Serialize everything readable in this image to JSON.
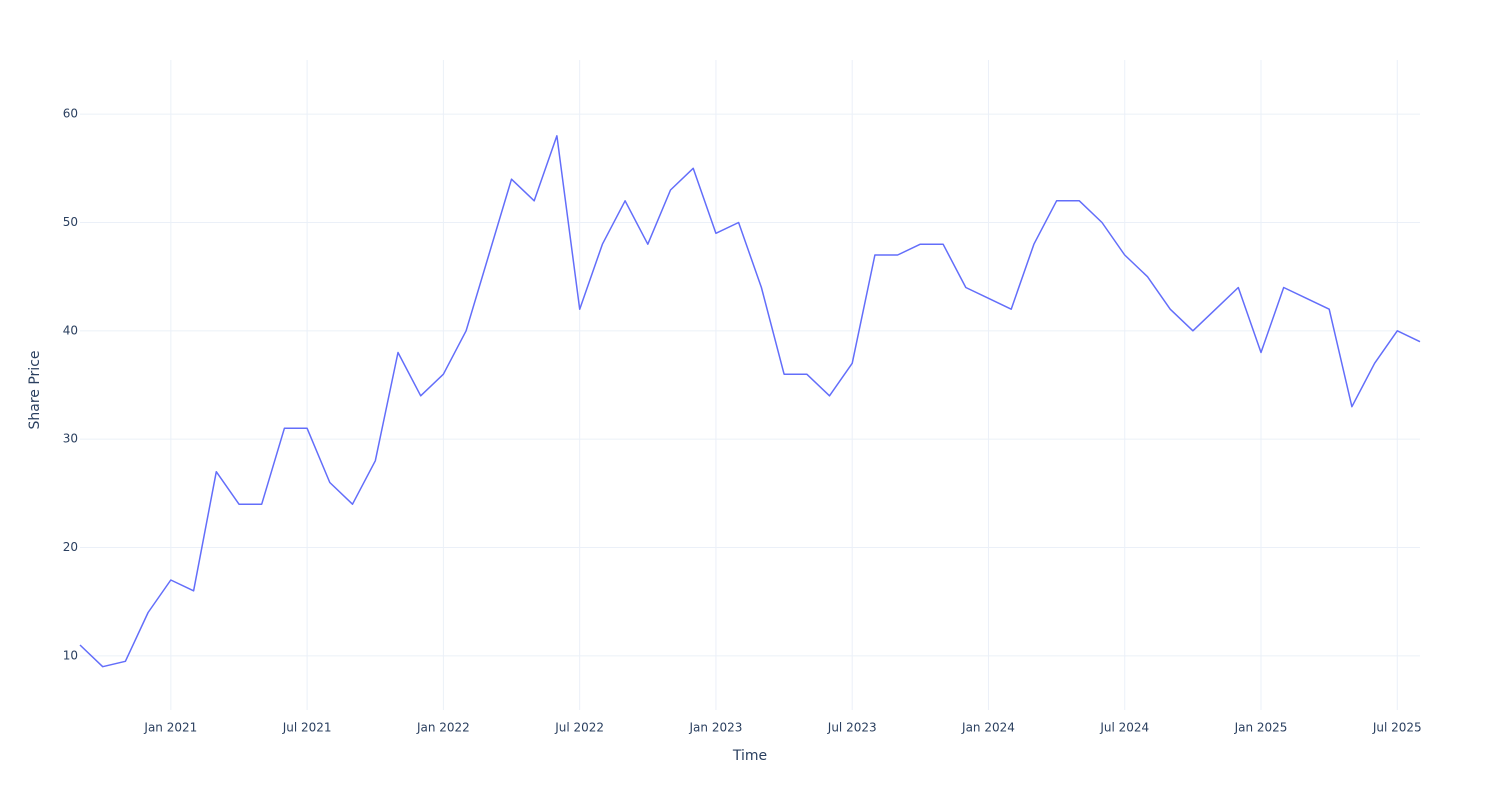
{
  "chart_data": {
    "type": "line",
    "x_label": "Time",
    "y_label": "Share Price",
    "x": [
      "2020-09",
      "2020-10",
      "2020-11",
      "2020-12",
      "2021-01",
      "2021-02",
      "2021-03",
      "2021-04",
      "2021-05",
      "2021-06",
      "2021-07",
      "2021-08",
      "2021-09",
      "2021-10",
      "2021-11",
      "2021-12",
      "2022-01",
      "2022-02",
      "2022-03",
      "2022-04",
      "2022-05",
      "2022-06",
      "2022-07",
      "2022-08",
      "2022-09",
      "2022-10",
      "2022-11",
      "2022-12",
      "2023-01",
      "2023-02",
      "2023-03",
      "2023-04",
      "2023-05",
      "2023-06",
      "2023-07",
      "2023-08",
      "2023-09",
      "2023-10",
      "2023-11",
      "2023-12",
      "2024-01",
      "2024-02",
      "2024-03",
      "2024-04",
      "2024-05",
      "2024-06",
      "2024-07",
      "2024-08",
      "2024-09",
      "2024-10",
      "2024-11",
      "2024-12",
      "2025-01",
      "2025-02",
      "2025-03",
      "2025-04",
      "2025-05",
      "2025-06",
      "2025-07",
      "2025-08"
    ],
    "series": [
      {
        "name": "Share Price",
        "color": "#636efa",
        "values": [
          11,
          9,
          9.5,
          14,
          17,
          16,
          27,
          24,
          24,
          31,
          31,
          26,
          24,
          28,
          38,
          34,
          36,
          40,
          47,
          54,
          52,
          58,
          42,
          48,
          52,
          48,
          53,
          55,
          49,
          50,
          44,
          36,
          36,
          34,
          37,
          47,
          47,
          48,
          48,
          44,
          43,
          42,
          48,
          52,
          52,
          50,
          47,
          45,
          42,
          40,
          42,
          44,
          38,
          44,
          43,
          42,
          33,
          37,
          40,
          39
        ]
      }
    ],
    "xlim": [
      "2020-09",
      "2025-08"
    ],
    "xticks": [
      {
        "value": "2021-01",
        "label": "Jan 2021"
      },
      {
        "value": "2021-07",
        "label": "Jul 2021"
      },
      {
        "value": "2022-01",
        "label": "Jan 2022"
      },
      {
        "value": "2022-07",
        "label": "Jul 2022"
      },
      {
        "value": "2023-01",
        "label": "Jan 2023"
      },
      {
        "value": "2023-07",
        "label": "Jul 2023"
      },
      {
        "value": "2024-01",
        "label": "Jan 2024"
      },
      {
        "value": "2024-07",
        "label": "Jul 2024"
      },
      {
        "value": "2025-01",
        "label": "Jan 2025"
      },
      {
        "value": "2025-07",
        "label": "Jul 2025"
      }
    ],
    "ylim": [
      5,
      65
    ],
    "yticks": [
      10,
      20,
      30,
      40,
      50,
      60
    ],
    "grid": true
  }
}
